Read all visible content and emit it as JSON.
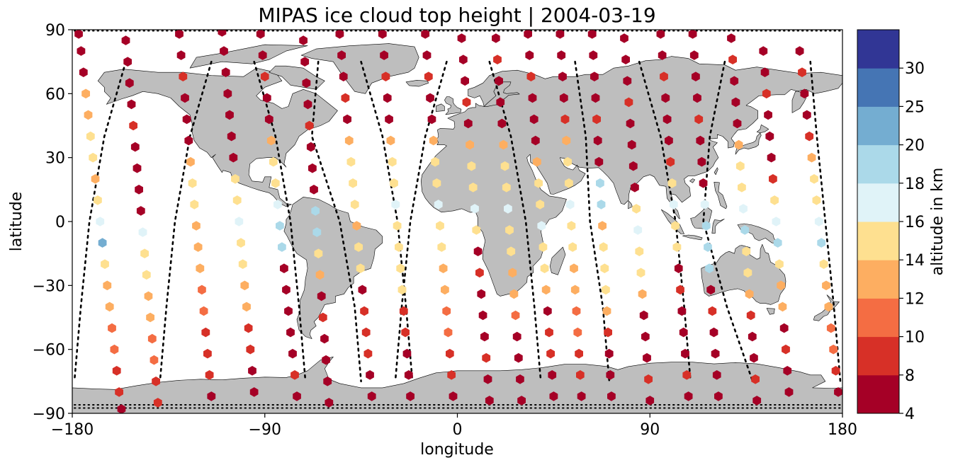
{
  "chart_data": {
    "type": "scatter",
    "title": "MIPAS ice cloud top height | 2004-03-19",
    "xlabel": "longitude",
    "ylabel": "latitude",
    "xlim": [
      -180,
      180
    ],
    "ylim": [
      -90,
      90
    ],
    "xticks": [
      -180,
      -90,
      0,
      90,
      180
    ],
    "yticks": [
      -90,
      -60,
      -30,
      0,
      30,
      60,
      90
    ],
    "xtick_labels": [
      "−180",
      "−90",
      "0",
      "90",
      "180"
    ],
    "ytick_labels": [
      "−90",
      "−60",
      "−30",
      "0",
      "30",
      "60",
      "90"
    ],
    "grid": false,
    "colorbar": {
      "label": "altitude in km",
      "ticks": [
        4,
        8,
        10,
        12,
        14,
        16,
        18,
        20,
        25,
        30
      ],
      "tick_labels": [
        "4",
        "8",
        "10",
        "12",
        "14",
        "16",
        "18",
        "20",
        "25",
        "30"
      ],
      "colors": [
        "#a50026",
        "#d73027",
        "#f46d43",
        "#fdae61",
        "#fee090",
        "#e0f3f8",
        "#abd9e9",
        "#74add1",
        "#4575b4",
        "#313695"
      ]
    },
    "map_colors": {
      "land": "#bebebe",
      "coast": "#000000",
      "ocean": "#ffffff"
    },
    "orbit_tracks": [
      {
        "lon": [
          -155,
          -165,
          -172,
          -176,
          -179
        ],
        "lat": [
          75,
          40,
          0,
          -40,
          -75
        ]
      },
      {
        "lon": [
          -115,
          -125,
          -132,
          -136,
          -139
        ],
        "lat": [
          75,
          40,
          0,
          -40,
          -75
        ]
      },
      {
        "lon": [
          -95,
          -85,
          -78,
          -74,
          -71
        ],
        "lat": [
          75,
          40,
          0,
          -40,
          -75
        ]
      },
      {
        "lon": [
          -65,
          -68,
          -55,
          -48,
          -45
        ],
        "lat": [
          75,
          40,
          0,
          -40,
          -75
        ]
      },
      {
        "lon": [
          -45,
          -35,
          -28,
          -24,
          -21
        ],
        "lat": [
          75,
          40,
          0,
          -40,
          -75
        ]
      },
      {
        "lon": [
          -5,
          -15,
          -22,
          -26,
          -29
        ],
        "lat": [
          75,
          40,
          0,
          -40,
          -75
        ]
      },
      {
        "lon": [
          15,
          25,
          32,
          36,
          39
        ],
        "lat": [
          75,
          40,
          0,
          -40,
          -75
        ]
      },
      {
        "lon": [
          55,
          60,
          62,
          68,
          71
        ],
        "lat": [
          75,
          40,
          0,
          -40,
          -75
        ]
      },
      {
        "lon": [
          85,
          95,
          102,
          106,
          109
        ],
        "lat": [
          75,
          40,
          0,
          -40,
          -75
        ]
      },
      {
        "lon": [
          125,
          118,
          115,
          126,
          138
        ],
        "lat": [
          75,
          40,
          0,
          -40,
          -75
        ]
      },
      {
        "lon": [
          165,
          168,
          172,
          176,
          179
        ],
        "lat": [
          75,
          40,
          0,
          -40,
          -75
        ]
      }
    ],
    "pole_tracks": {
      "lats": [
        89.5,
        -86,
        -87.5
      ]
    },
    "tracks": [
      {
        "lon0": -177,
        "lon1": -157,
        "lats": [
          88,
          80,
          70,
          60,
          50,
          40,
          30,
          20,
          10,
          0,
          -10,
          -20,
          -30,
          -40,
          -50,
          -60,
          -70,
          -80,
          -88
        ],
        "alts": [
          6,
          7,
          6,
          12,
          13,
          14,
          15,
          13,
          14,
          16,
          20,
          14,
          13,
          12,
          11,
          10,
          9,
          8,
          6
        ]
      },
      {
        "lon0": -155,
        "lon1": -140,
        "lats": [
          85,
          75,
          65,
          55,
          45,
          35,
          25,
          15,
          5,
          -5,
          -15,
          -25,
          -35,
          -45,
          -55,
          -65,
          -75,
          -85
        ],
        "alts": [
          6,
          7,
          6,
          7,
          8,
          6,
          7,
          6,
          7,
          16,
          15,
          14,
          13,
          12,
          11,
          10,
          9,
          8
        ]
      },
      {
        "lon0": -130,
        "lon1": -115,
        "lats": [
          88,
          78,
          68,
          58,
          48,
          38,
          28,
          18,
          8,
          -2,
          -12,
          -22,
          -32,
          -42,
          -52,
          -62,
          -72,
          -82
        ],
        "alts": [
          6,
          7,
          8,
          7,
          6,
          7,
          13,
          14,
          15,
          12,
          13,
          12,
          11,
          10,
          9,
          9,
          8,
          6
        ]
      },
      {
        "lon0": -110,
        "lon1": -95,
        "lats": [
          89,
          80,
          70,
          60,
          50,
          40,
          30,
          20,
          10,
          0,
          -10,
          -20,
          -30,
          -40,
          -50,
          -60,
          -70,
          -80
        ],
        "alts": [
          6,
          7,
          6,
          7,
          6,
          6,
          7,
          14,
          15,
          16,
          15,
          14,
          13,
          12,
          9,
          8,
          7,
          6
        ]
      },
      {
        "lon0": -92,
        "lon1": -75,
        "lats": [
          88,
          78,
          68,
          58,
          48,
          38,
          28,
          18,
          8,
          -2,
          -12,
          -22,
          -32,
          -42,
          -52,
          -62,
          -72,
          -82
        ],
        "alts": [
          6,
          7,
          8,
          7,
          6,
          13,
          14,
          15,
          16,
          19,
          18,
          6,
          7,
          6,
          7,
          6,
          8,
          6
        ]
      },
      {
        "lon0": -72,
        "lon1": -60,
        "lats": [
          85,
          75,
          65,
          55,
          45,
          35,
          25,
          15,
          5,
          -5,
          -15,
          -25,
          -35,
          -45,
          -55,
          -65,
          -75,
          -85
        ],
        "alts": [
          6,
          7,
          6,
          7,
          8,
          7,
          6,
          7,
          19,
          18,
          14,
          13,
          7,
          8,
          7,
          6,
          7,
          6
        ]
      },
      {
        "lon0": -55,
        "lon1": -40,
        "lats": [
          88,
          78,
          68,
          58,
          48,
          38,
          28,
          18,
          8,
          -2,
          -12,
          -22,
          -32,
          -42,
          -52,
          -62,
          -72,
          -82
        ],
        "alts": [
          6,
          7,
          6,
          8,
          7,
          13,
          14,
          15,
          14,
          13,
          15,
          14,
          7,
          8,
          9,
          8,
          7,
          6
        ]
      },
      {
        "lon0": -35,
        "lon1": -22,
        "lats": [
          88,
          78,
          68,
          58,
          48,
          38,
          28,
          18,
          8,
          -2,
          -12,
          -22,
          -32,
          -42,
          -52,
          -62,
          -72,
          -82
        ],
        "alts": [
          6,
          7,
          8,
          7,
          6,
          13,
          14,
          15,
          16,
          15,
          14,
          15,
          14,
          9,
          8,
          7,
          6,
          7
        ]
      },
      {
        "lon0": -15,
        "lon1": -2,
        "lats": [
          88,
          78,
          68,
          58,
          48,
          38,
          28,
          18,
          8,
          -2,
          -12,
          -22,
          -32,
          -42,
          -52,
          -62,
          -72,
          -82
        ],
        "alts": [
          6,
          7,
          8,
          7,
          6,
          13,
          14,
          15,
          16,
          15,
          14,
          13,
          12,
          11,
          10,
          9,
          8,
          7
        ]
      },
      {
        "lon0": 2,
        "lon1": 15,
        "lats": [
          86,
          76,
          66,
          56,
          46,
          36,
          26,
          16,
          6,
          -4,
          -14,
          -24,
          -34,
          -44,
          -54,
          -64,
          -74,
          -84
        ],
        "alts": [
          7,
          6,
          7,
          8,
          7,
          13,
          14,
          15,
          16,
          15,
          7,
          8,
          7,
          6,
          7,
          8,
          7,
          6
        ]
      },
      {
        "lon0": 18,
        "lon1": 30,
        "lats": [
          86,
          76,
          66,
          56,
          46,
          36,
          26,
          16,
          6,
          -4,
          -14,
          -24,
          -34,
          -44,
          -54,
          -64,
          -74,
          -84
        ],
        "alts": [
          7,
          8,
          7,
          6,
          7,
          13,
          14,
          15,
          16,
          15,
          14,
          13,
          12,
          11,
          7,
          6,
          7,
          6
        ]
      },
      {
        "lon0": 33,
        "lon1": 45,
        "lats": [
          88,
          78,
          68,
          58,
          48,
          38,
          28,
          18,
          8,
          -2,
          -12,
          -22,
          -32,
          -42,
          -52,
          -62,
          -72,
          -82
        ],
        "alts": [
          6,
          7,
          8,
          7,
          6,
          7,
          13,
          14,
          15,
          16,
          15,
          14,
          13,
          7,
          8,
          9,
          7,
          6
        ]
      },
      {
        "lon0": 48,
        "lon1": 58,
        "lats": [
          88,
          78,
          68,
          58,
          48,
          38,
          28,
          18,
          8,
          -2,
          -12,
          -22,
          -32,
          -42,
          -52,
          -62,
          -72,
          -82
        ],
        "alts": [
          6,
          7,
          6,
          7,
          8,
          13,
          14,
          15,
          16,
          15,
          14,
          13,
          12,
          11,
          10,
          9,
          8,
          7
        ]
      },
      {
        "lon0": 63,
        "lon1": 72,
        "lats": [
          88,
          78,
          68,
          58,
          48,
          38,
          28,
          18,
          8,
          -2,
          -12,
          -22,
          -32,
          -42,
          -52,
          -62,
          -72,
          -82
        ],
        "alts": [
          6,
          7,
          6,
          7,
          8,
          7,
          6,
          19,
          18,
          13,
          14,
          15,
          14,
          13,
          8,
          7,
          6,
          7
        ]
      },
      {
        "lon0": 78,
        "lon1": 90,
        "lats": [
          86,
          76,
          66,
          56,
          46,
          36,
          26,
          16,
          6,
          -4,
          -14,
          -24,
          -34,
          -44,
          -54,
          -64,
          -74,
          -84
        ],
        "alts": [
          7,
          6,
          7,
          8,
          7,
          6,
          7,
          6,
          15,
          16,
          15,
          14,
          13,
          7,
          6,
          7,
          8,
          7
        ]
      },
      {
        "lon0": 95,
        "lon1": 108,
        "lats": [
          88,
          78,
          68,
          58,
          48,
          38,
          28,
          18,
          8,
          -2,
          -12,
          -22,
          -32,
          -42,
          -52,
          -62,
          -72,
          -82
        ],
        "alts": [
          6,
          7,
          8,
          7,
          6,
          7,
          8,
          15,
          16,
          15,
          14,
          7,
          8,
          7,
          6,
          7,
          8,
          7
        ]
      },
      {
        "lon0": 110,
        "lon1": 122,
        "lats": [
          88,
          78,
          68,
          58,
          48,
          38,
          28,
          18,
          8,
          -2,
          -12,
          -22,
          -32,
          -42,
          -52,
          -62,
          -72,
          -82
        ],
        "alts": [
          6,
          7,
          6,
          7,
          8,
          7,
          6,
          7,
          16,
          19,
          18,
          19,
          7,
          8,
          7,
          6,
          7,
          6
        ]
      },
      {
        "lon0": 128,
        "lon1": 140,
        "lats": [
          86,
          76,
          66,
          56,
          46,
          36,
          26,
          16,
          6,
          -4,
          -14,
          -24,
          -34,
          -44,
          -54,
          -64,
          -74,
          -84
        ],
        "alts": [
          7,
          8,
          7,
          6,
          7,
          13,
          14,
          15,
          16,
          19,
          15,
          14,
          13,
          8,
          7,
          6,
          8,
          7
        ]
      },
      {
        "lon0": 143,
        "lon1": 155,
        "lats": [
          80,
          70,
          60,
          50,
          40,
          30,
          20,
          10,
          0,
          -10,
          -20,
          -30,
          -40,
          -50,
          -60,
          -70,
          -80
        ],
        "alts": [
          6,
          7,
          8,
          7,
          6,
          7,
          8,
          15,
          17,
          19,
          14,
          13,
          12,
          7,
          8,
          7,
          6
        ]
      },
      {
        "lon0": 160,
        "lon1": 178,
        "lats": [
          80,
          70,
          60,
          50,
          40,
          30,
          20,
          10,
          0,
          -10,
          -20,
          -30,
          -40,
          -50,
          -60,
          -70,
          -80
        ],
        "alts": [
          7,
          8,
          6,
          7,
          8,
          13,
          14,
          15,
          16,
          19,
          14,
          13,
          12,
          11,
          10,
          9,
          7
        ]
      }
    ]
  }
}
